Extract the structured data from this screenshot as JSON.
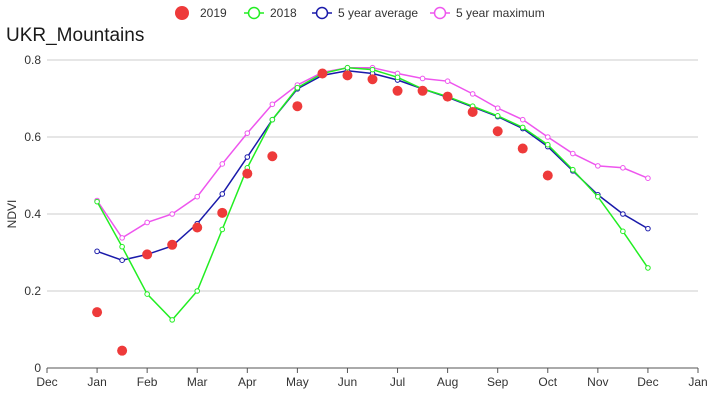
{
  "chart_data": {
    "type": "line",
    "title": "UKR_Mountains",
    "ylabel": "NDVI",
    "xlabel": "",
    "ylim": [
      0,
      0.8
    ],
    "yticks": [
      0,
      0.2,
      0.4,
      0.6,
      0.8
    ],
    "ytick_labels": [
      "0",
      "0.2",
      "0.4",
      "0.6",
      "0.8"
    ],
    "xticks": [
      "Dec",
      "Jan",
      "Feb",
      "Mar",
      "Apr",
      "May",
      "Jun",
      "Jul",
      "Aug",
      "Sep",
      "Oct",
      "Nov",
      "Dec",
      "Jan"
    ],
    "grid": "horizontal",
    "legend_position": "top-center",
    "x": [
      "Jan-01",
      "Jan-16",
      "Feb-01",
      "Feb-16",
      "Mar-01",
      "Mar-16",
      "Apr-01",
      "Apr-16",
      "May-01",
      "May-16",
      "Jun-01",
      "Jun-16",
      "Jul-01",
      "Jul-16",
      "Aug-01",
      "Aug-16",
      "Sep-01",
      "Sep-16",
      "Oct-01",
      "Oct-16",
      "Nov-01",
      "Nov-16",
      "Dec-01"
    ],
    "series": [
      {
        "name": "2019",
        "style": "dots",
        "color": "#ee3a3a",
        "values": [
          0.145,
          0.045,
          0.295,
          0.32,
          0.365,
          0.403,
          0.505,
          0.55,
          0.68,
          0.765,
          0.76,
          0.75,
          0.72,
          0.72,
          0.705,
          0.665,
          0.615,
          0.57,
          0.5,
          null,
          null,
          null,
          null
        ]
      },
      {
        "name": "2018",
        "style": "line",
        "color": "#22ee22",
        "values": [
          0.432,
          0.315,
          0.192,
          0.125,
          0.2,
          0.36,
          0.52,
          0.645,
          0.728,
          0.765,
          0.78,
          0.775,
          0.755,
          0.725,
          0.705,
          0.68,
          0.655,
          0.625,
          0.58,
          0.515,
          0.445,
          0.355,
          0.26
        ]
      },
      {
        "name": "5 year average",
        "style": "line",
        "color": "#1a1aaa",
        "values": [
          0.303,
          0.28,
          0.295,
          0.317,
          0.375,
          0.452,
          0.548,
          0.645,
          0.725,
          0.76,
          0.772,
          0.765,
          0.748,
          0.725,
          0.703,
          0.678,
          0.653,
          0.622,
          0.575,
          0.512,
          0.45,
          0.4,
          0.362
        ]
      },
      {
        "name": "5 year maximum",
        "style": "line",
        "color": "#ee55ee",
        "values": [
          0.435,
          0.338,
          0.378,
          0.4,
          0.445,
          0.53,
          0.61,
          0.685,
          0.735,
          0.768,
          0.78,
          0.78,
          0.765,
          0.752,
          0.745,
          0.712,
          0.675,
          0.645,
          0.6,
          0.557,
          0.525,
          0.52,
          0.493
        ]
      }
    ]
  }
}
